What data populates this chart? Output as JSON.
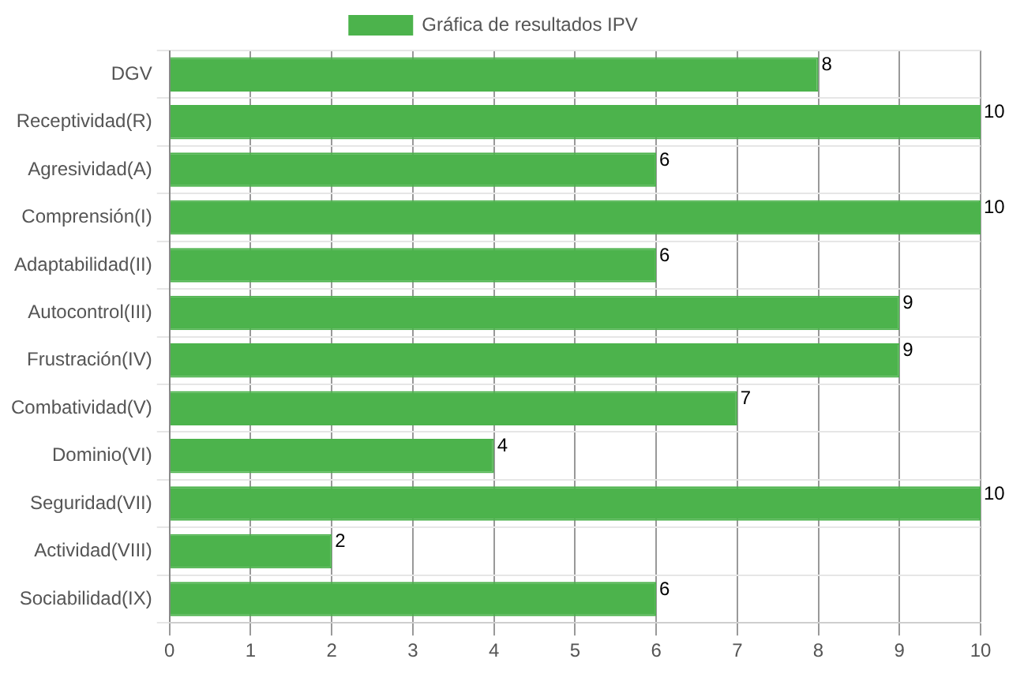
{
  "chart_data": {
    "type": "bar",
    "orientation": "horizontal",
    "categories": [
      "DGV",
      "Receptividad(R)",
      "Agresividad(A)",
      "Comprensión(I)",
      "Adaptabilidad(II)",
      "Autocontrol(III)",
      "Frustración(IV)",
      "Combatividad(V)",
      "Dominio(VI)",
      "Seguridad(VII)",
      "Actividad(VIII)",
      "Sociabilidad(IX)"
    ],
    "series": [
      {
        "name": "Gráfica de resultados IPV",
        "color": "#4cb34c",
        "values": [
          8,
          10,
          6,
          10,
          6,
          9,
          9,
          7,
          4,
          10,
          2,
          6
        ]
      }
    ],
    "xlim": [
      0,
      10
    ],
    "xticks": [
      0,
      1,
      2,
      3,
      4,
      5,
      6,
      7,
      8,
      9,
      10
    ],
    "grid": true,
    "legend": "top",
    "data_labels": true
  }
}
